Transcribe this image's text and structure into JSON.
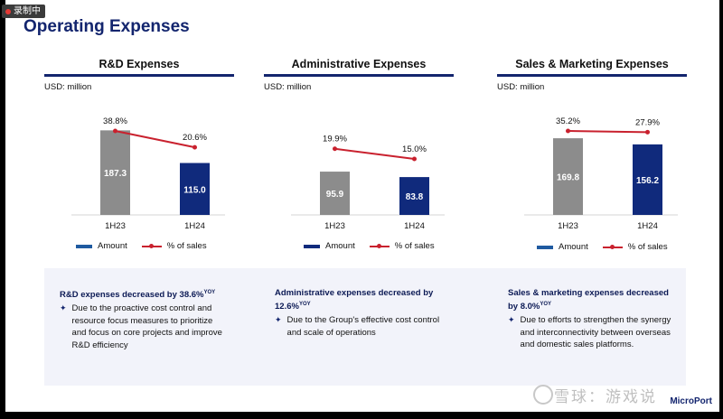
{
  "recording_badge": "录制中",
  "title": "Operating Expenses",
  "colors": {
    "gray_bar": "#8c8c8c",
    "navy_bar": "#102a7c",
    "line": "#c9212e",
    "title": "#13256e"
  },
  "chart_data": [
    {
      "type": "bar",
      "title": "R&D Expenses",
      "unit": "USD: million",
      "categories": [
        "1H23",
        "1H24"
      ],
      "series": [
        {
          "name": "Amount",
          "values": [
            187.3,
            115.0
          ],
          "labels": [
            "187.3",
            "115.0"
          ]
        },
        {
          "name": "% of sales",
          "type": "line",
          "values": [
            38.8,
            20.6
          ],
          "labels": [
            "38.8%",
            "20.6%"
          ]
        }
      ],
      "legend": [
        "Amount",
        "% of sales"
      ]
    },
    {
      "type": "bar",
      "title": "Administrative Expenses",
      "unit": "USD: million",
      "categories": [
        "1H23",
        "1H24"
      ],
      "series": [
        {
          "name": "Amount",
          "values": [
            95.9,
            83.8
          ],
          "labels": [
            "95.9",
            "83.8"
          ]
        },
        {
          "name": "% of sales",
          "type": "line",
          "values": [
            19.9,
            15.0
          ],
          "labels": [
            "19.9%",
            "15.0%"
          ]
        }
      ],
      "legend": [
        "Amount",
        "% of sales"
      ]
    },
    {
      "type": "bar",
      "title": "Sales & Marketing Expenses",
      "unit": "USD: million",
      "categories": [
        "1H23",
        "1H24"
      ],
      "series": [
        {
          "name": "Amount",
          "values": [
            169.8,
            156.2
          ],
          "labels": [
            "169.8",
            "156.2"
          ]
        },
        {
          "name": "% of sales",
          "type": "line",
          "values": [
            35.2,
            27.9
          ],
          "labels": [
            "35.2%",
            "27.9%"
          ]
        }
      ],
      "legend": [
        "Amount",
        "% of sales"
      ]
    }
  ],
  "notes": [
    {
      "head": "R&D expenses decreased by 38.6%",
      "sup": "YOY",
      "bullet": "Due to the proactive cost control and resource focus measures to prioritize and focus on core projects and improve R&D efficiency"
    },
    {
      "head": "Administrative expenses decreased by 12.6%",
      "sup": "YOY",
      "bullet": "Due to the Group's effective cost control and scale of operations"
    },
    {
      "head": "Sales & marketing expenses decreased by 8.0%",
      "sup": "YOY",
      "bullet": "Due to efforts to strengthen the synergy and interconnectivity between overseas and domestic sales platforms."
    }
  ],
  "watermark": "雪球：游戏说",
  "brand": "MicroPort"
}
